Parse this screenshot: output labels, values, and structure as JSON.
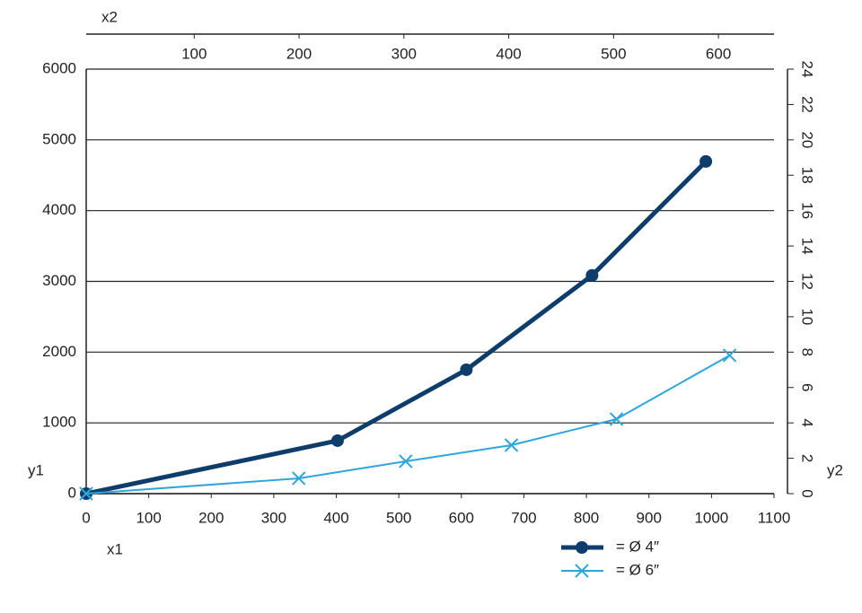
{
  "chart_data": {
    "type": "line",
    "x_label": "x1",
    "x2_label": "x2",
    "y_label": "y1",
    "y2_label": "y2",
    "xlim": [
      0,
      1100
    ],
    "xticks": [
      0,
      100,
      200,
      300,
      400,
      500,
      600,
      700,
      800,
      900,
      1000,
      1100
    ],
    "x2lim": [
      -3,
      653
    ],
    "x2ticks": [
      100,
      200,
      300,
      400,
      500,
      600
    ],
    "ylim": [
      0,
      6000
    ],
    "yticks": [
      0,
      1000,
      2000,
      3000,
      4000,
      5000,
      6000
    ],
    "y2lim": [
      0,
      24
    ],
    "y2ticks": [
      0,
      2,
      4,
      6,
      8,
      10,
      12,
      14,
      16,
      18,
      20,
      22,
      24
    ],
    "grid": true,
    "legend": "bottom-right",
    "series": [
      {
        "name": "= Ø 4″",
        "color": "#0e3d6b",
        "marker": "circle",
        "width": 5,
        "x": [
          0,
          402,
          608,
          809,
          991
        ],
        "values": [
          0,
          749,
          1751,
          3084,
          4695
        ]
      },
      {
        "name": "= Ø 6″",
        "color": "#2ea6dc",
        "marker": "cross",
        "width": 2,
        "x": [
          0,
          340,
          511,
          680,
          848,
          1029
        ],
        "values": [
          0,
          216,
          457,
          685,
          1053,
          1954
        ]
      }
    ]
  }
}
